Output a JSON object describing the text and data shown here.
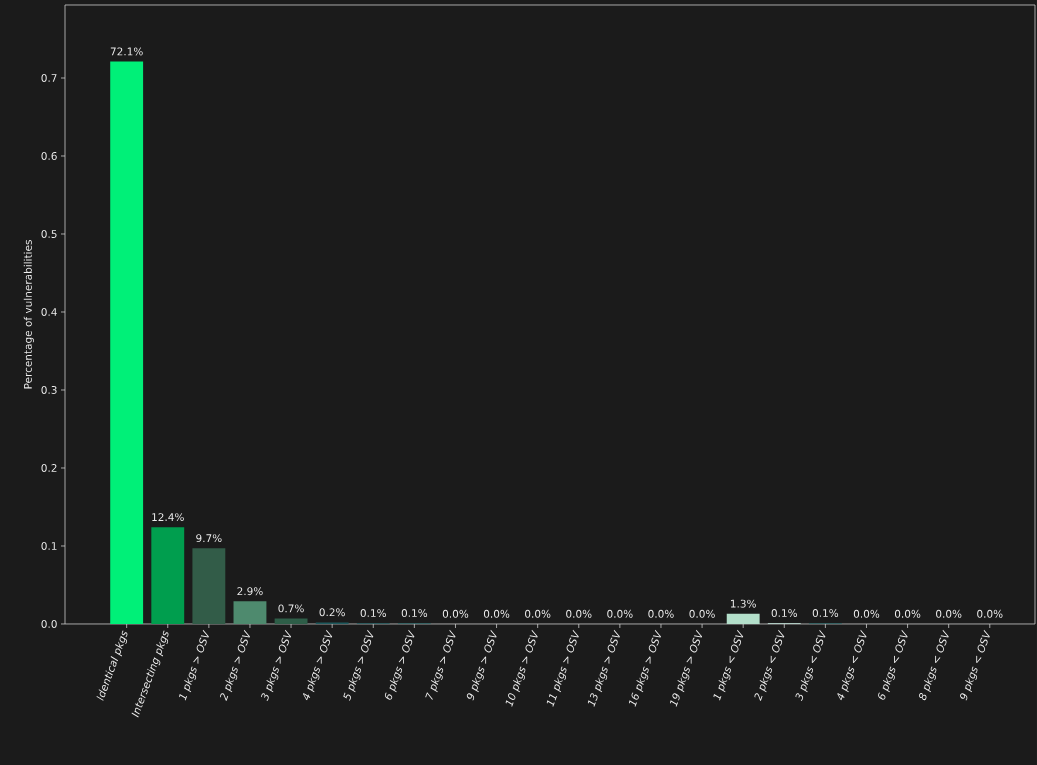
{
  "chart_data": {
    "type": "bar",
    "ylabel": "Percentage of vulnerabilities",
    "categories": [
      "*Identical pkgs*",
      "*Intersecting pkgs*",
      "*1 pkgs > OSV*",
      "*2 pkgs > OSV*",
      "*3 pkgs > OSV*",
      "*4 pkgs > OSV*",
      "*5 pkgs > OSV*",
      "*6 pkgs > OSV*",
      "*7 pkgs > OSV*",
      "*9 pkgs > OSV*",
      "*10 pkgs > OSV*",
      "*11 pkgs > OSV*",
      "*13 pkgs > OSV*",
      "*16 pkgs > OSV*",
      "*19 pkgs > OSV*",
      "*1 pkgs < OSV*",
      "*2 pkgs < OSV*",
      "*3 pkgs < OSV*",
      "*4 pkgs < OSV*",
      "*6 pkgs < OSV*",
      "*8 pkgs < OSV*",
      "*9 pkgs < OSV*"
    ],
    "values": [
      0.721,
      0.124,
      0.097,
      0.029,
      0.007,
      0.002,
      0.001,
      0.001,
      0.0,
      0.0,
      0.0,
      0.0,
      0.0,
      0.0,
      0.0,
      0.013,
      0.001,
      0.001,
      0.0,
      0.0,
      0.0,
      0.0
    ],
    "value_labels": [
      "72.1%",
      "12.4%",
      "9.7%",
      "2.9%",
      "0.7%",
      "0.2%",
      "0.1%",
      "0.1%",
      "0.0%",
      "0.0%",
      "0.0%",
      "0.0%",
      "0.0%",
      "0.0%",
      "0.0%",
      "1.3%",
      "0.1%",
      "0.1%",
      "0.0%",
      "0.0%",
      "0.0%",
      "0.0%"
    ],
    "colors": [
      "#00f078",
      "#009e4e",
      "#325c48",
      "#4e8a6e",
      "#2e5e48",
      "#1e5a5e",
      "#1e5a5e",
      "#2a6466",
      "#2a6466",
      "#2a6466",
      "#2a6466",
      "#2a6466",
      "#2a6466",
      "#2a6466",
      "#2a6466",
      "#b3dfca",
      "#c8ece0",
      "#2a6466",
      "#2a6466",
      "#2a6466",
      "#2a6466",
      "#2a6466"
    ],
    "ylim": [
      0,
      0.7936
    ],
    "yticks": [
      {
        "value": 0,
        "label": "0.0"
      },
      0.1,
      0.2,
      0.3,
      0.4,
      0.5,
      0.6,
      0.7
    ]
  }
}
